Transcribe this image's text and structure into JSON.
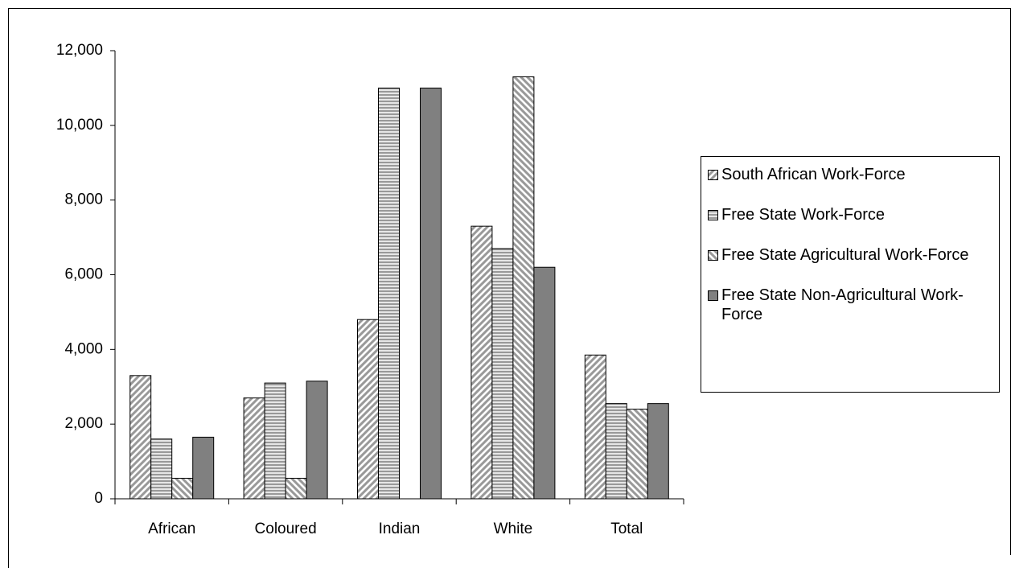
{
  "chart_data": {
    "type": "bar",
    "categories": [
      "African",
      "Coloured",
      "Indian",
      "White",
      "Total"
    ],
    "series": [
      {
        "name": "South African Work-Force",
        "color": "#999999",
        "pattern": "diagonal-up",
        "values": [
          3300,
          2700,
          4800,
          7300,
          3850
        ]
      },
      {
        "name": "Free State Work-Force",
        "color": "#999999",
        "pattern": "horizontal",
        "values": [
          1600,
          3100,
          11000,
          6700,
          2550
        ]
      },
      {
        "name": "Free State Agricultural Work-Force",
        "color": "#999999",
        "pattern": "diagonal-down",
        "values": [
          550,
          550,
          0,
          11300,
          2400
        ]
      },
      {
        "name": "Free State Non-Agricultural Work-Force",
        "color": "#808080",
        "pattern": "solid",
        "values": [
          1650,
          3150,
          11000,
          6200,
          2550
        ]
      }
    ],
    "ylim": [
      0,
      12000
    ],
    "yticks": [
      0,
      {
        "value": 2000,
        "label": "2,000"
      },
      {
        "value": 4000,
        "label": "4,000"
      },
      {
        "value": 6000,
        "label": "6,000"
      },
      {
        "value": 8000,
        "label": "8,000"
      },
      {
        "value": 10000,
        "label": "10,000"
      },
      {
        "value": 12000,
        "label": "12,000"
      }
    ],
    "legend": "right"
  }
}
